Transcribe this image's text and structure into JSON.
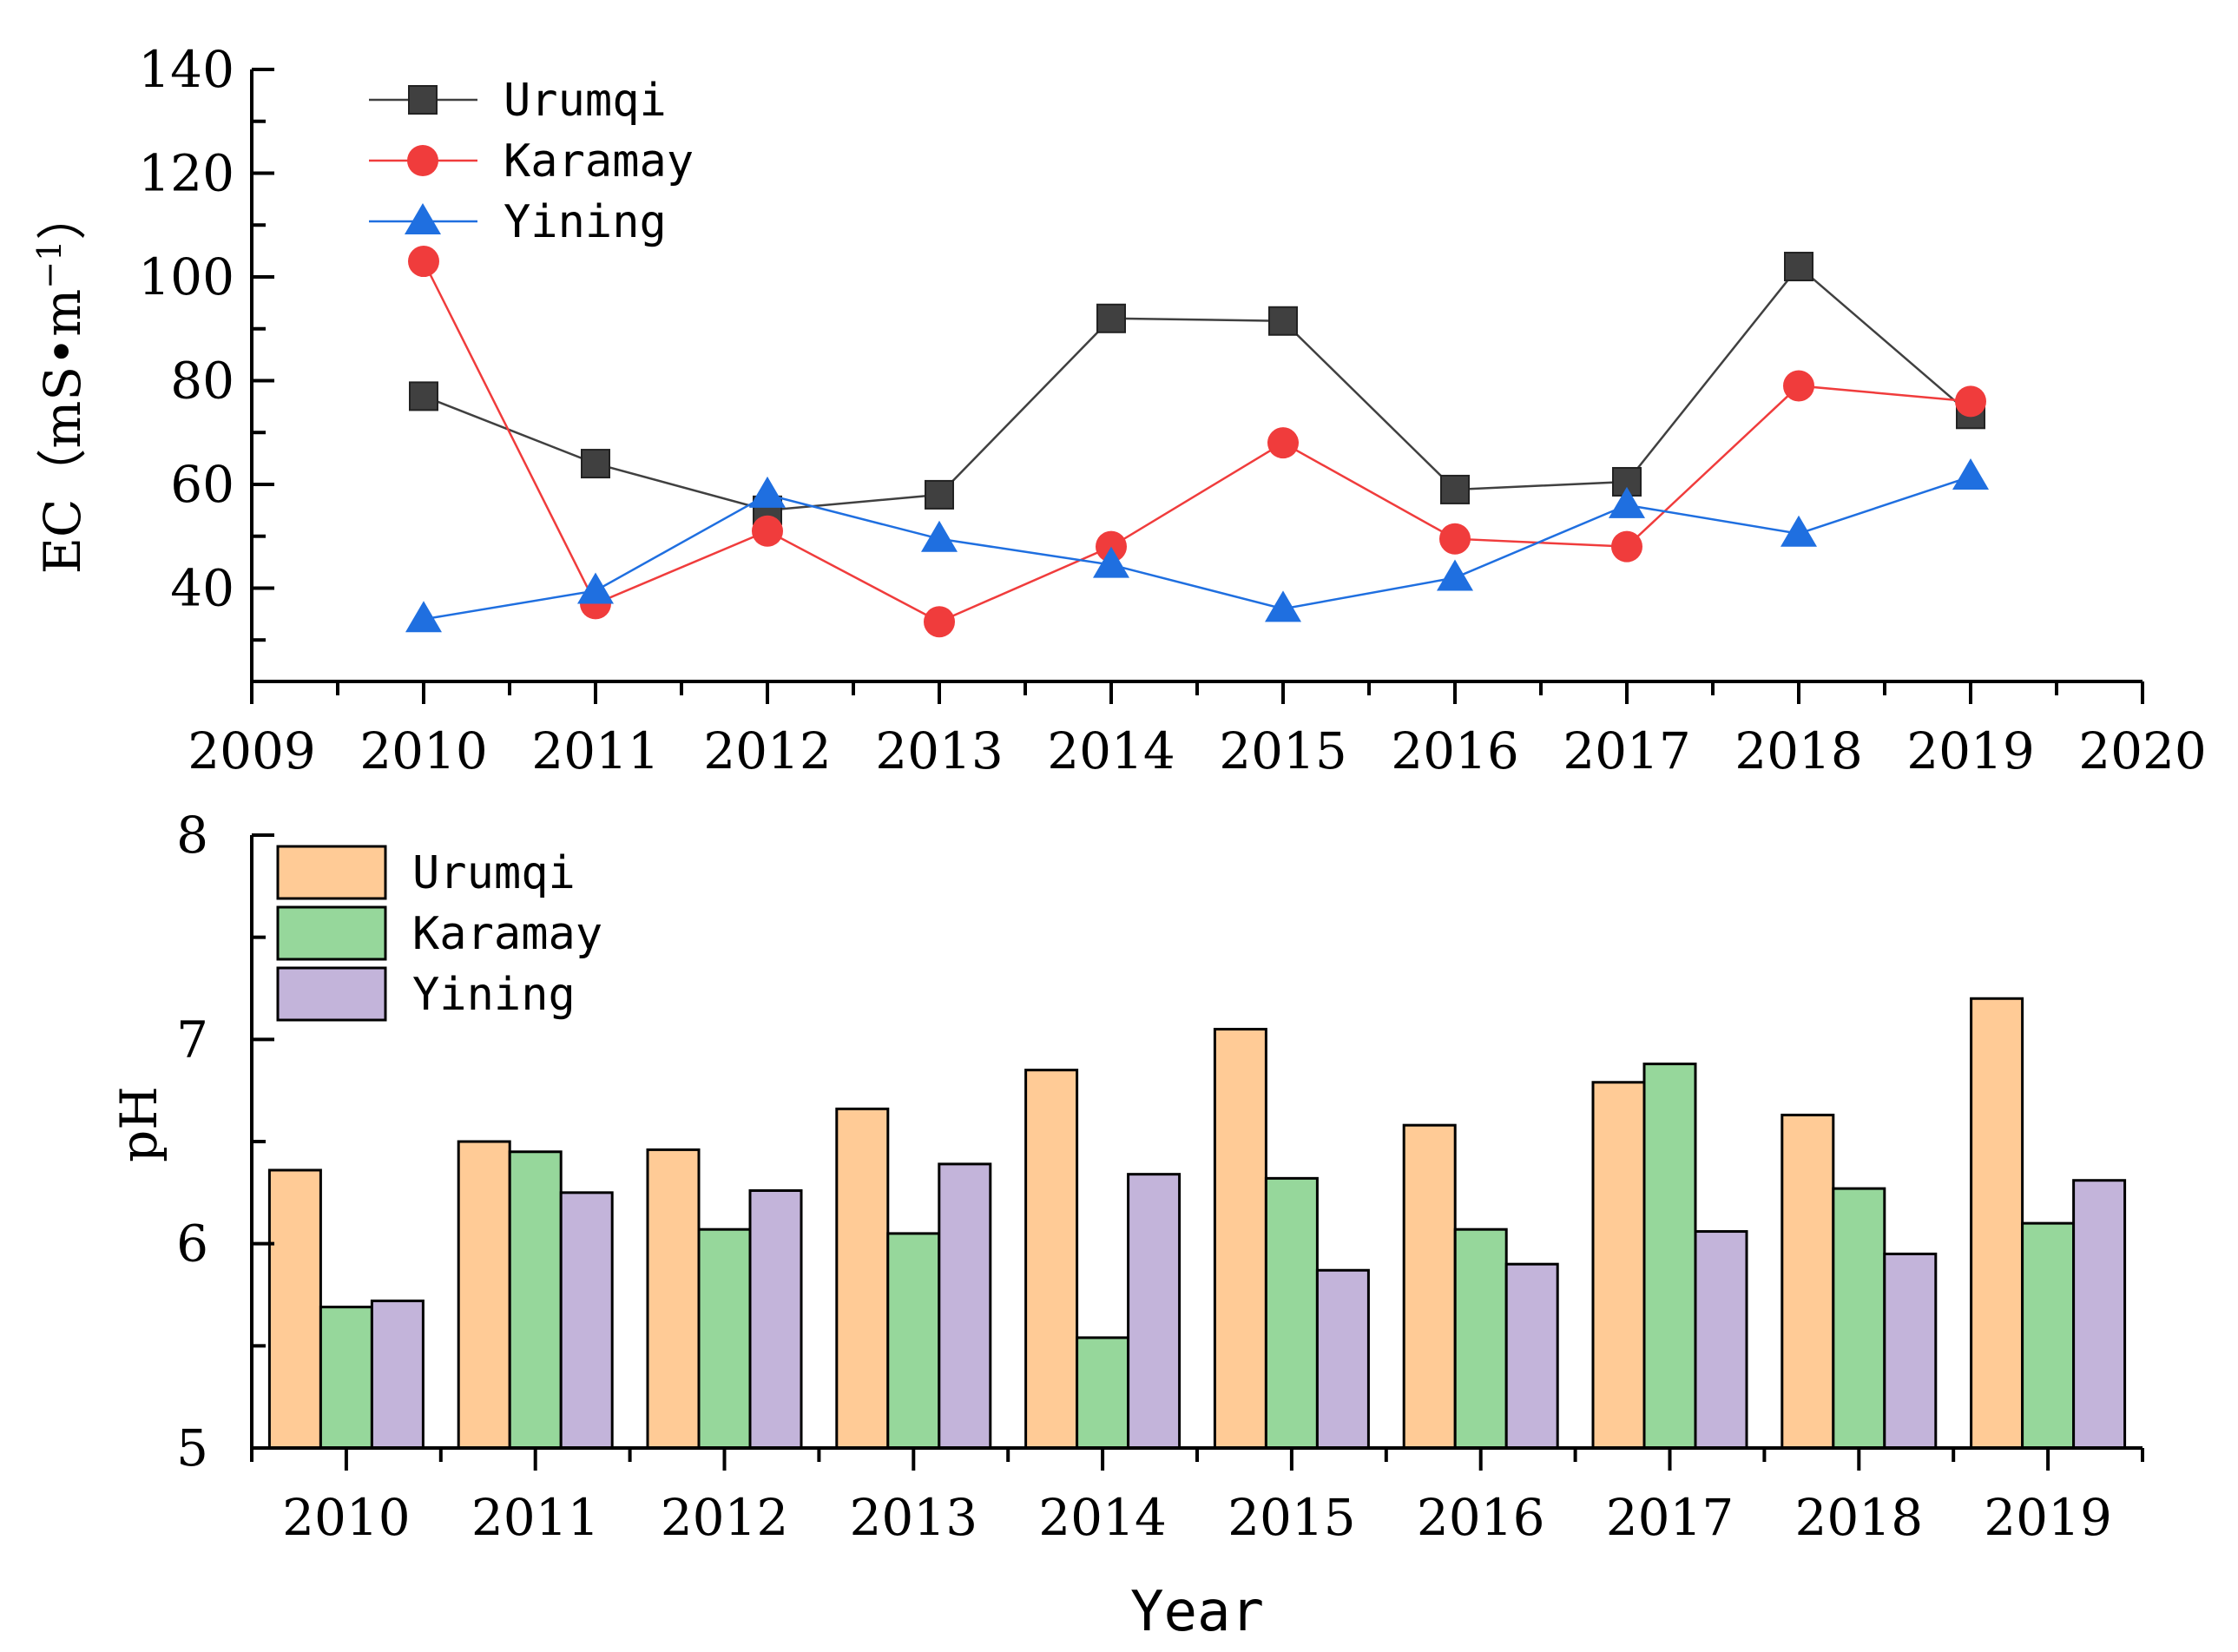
{
  "chart_data": [
    {
      "type": "line",
      "title": "",
      "xlabel": "",
      "ylabel": "EC（mS•m",
      "ylabel_sup": "−1",
      "ylabel_close": "）",
      "xlim": [
        2009,
        2020
      ],
      "ylim": [
        22,
        140
      ],
      "xticks": [
        2009,
        2010,
        2011,
        2012,
        2013,
        2014,
        2015,
        2016,
        2017,
        2018,
        2019,
        2020
      ],
      "yticks": [
        40,
        60,
        80,
        100,
        120,
        140
      ],
      "x": [
        2010,
        2011,
        2012,
        2013,
        2014,
        2015,
        2016,
        2017,
        2018,
        2019
      ],
      "legend": "top-left",
      "series": [
        {
          "name": "Urumqi",
          "color": "#404040",
          "marker": "square",
          "values": [
            77,
            64,
            55,
            58,
            92,
            91.5,
            59,
            60.5,
            102,
            73.5
          ]
        },
        {
          "name": "Karamay",
          "color": "#f03c3c",
          "marker": "circle",
          "values": [
            103,
            37,
            51,
            33.5,
            48,
            68,
            49.5,
            48,
            79,
            76
          ]
        },
        {
          "name": "Yining",
          "color": "#1f6fe0",
          "marker": "triangle",
          "values": [
            34,
            39.5,
            58,
            49.5,
            44.5,
            36,
            42,
            56,
            50.5,
            61.5
          ]
        }
      ]
    },
    {
      "type": "bar",
      "title": "",
      "xlabel": "Year",
      "ylabel": "pH",
      "ylim": [
        5,
        8
      ],
      "yticks": [
        5,
        6,
        7,
        8
      ],
      "categories": [
        "2010",
        "2011",
        "2012",
        "2013",
        "2014",
        "2015",
        "2016",
        "2017",
        "2018",
        "2019"
      ],
      "legend": "top-left",
      "series": [
        {
          "name": "Urumqi",
          "color": "#ffcb96",
          "values": [
            6.36,
            6.5,
            6.46,
            6.66,
            6.85,
            7.05,
            6.58,
            6.79,
            6.63,
            7.2
          ]
        },
        {
          "name": "Karamay",
          "color": "#96d79b",
          "values": [
            5.69,
            6.45,
            6.07,
            6.05,
            5.54,
            6.32,
            6.07,
            6.88,
            6.27,
            6.1
          ]
        },
        {
          "name": "Yining",
          "color": "#c3b4da",
          "values": [
            5.72,
            6.25,
            6.26,
            6.39,
            6.34,
            5.87,
            5.9,
            6.06,
            5.95,
            6.31
          ]
        }
      ]
    }
  ]
}
